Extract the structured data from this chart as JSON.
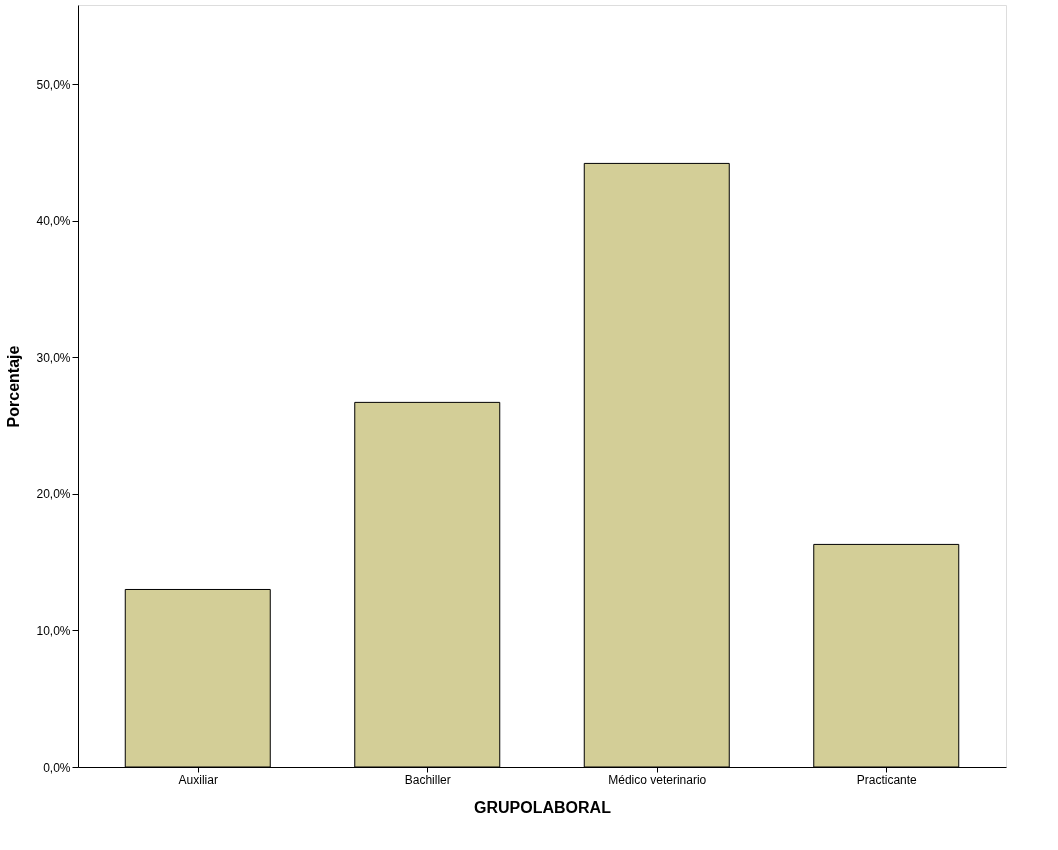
{
  "chart_data": {
    "type": "bar",
    "xlabel": "GRUPOLABORAL",
    "ylabel": "Porcentaje",
    "categories": [
      "Auxiliar",
      "Bachiller",
      "Médico veterinario",
      "Practicante"
    ],
    "values": [
      13.0,
      26.7,
      44.2,
      16.3
    ],
    "color": "#d3ce97",
    "ylim": [
      0,
      55.8
    ],
    "yticks": [
      {
        "value": 0,
        "label": "0,0%"
      },
      {
        "value": 10,
        "label": "10,0%"
      },
      {
        "value": 20,
        "label": "20,0%"
      },
      {
        "value": 30,
        "label": "30,0%"
      },
      {
        "value": 40,
        "label": "40,0%"
      },
      {
        "value": 50,
        "label": "50,0%"
      }
    ],
    "grid": false
  }
}
